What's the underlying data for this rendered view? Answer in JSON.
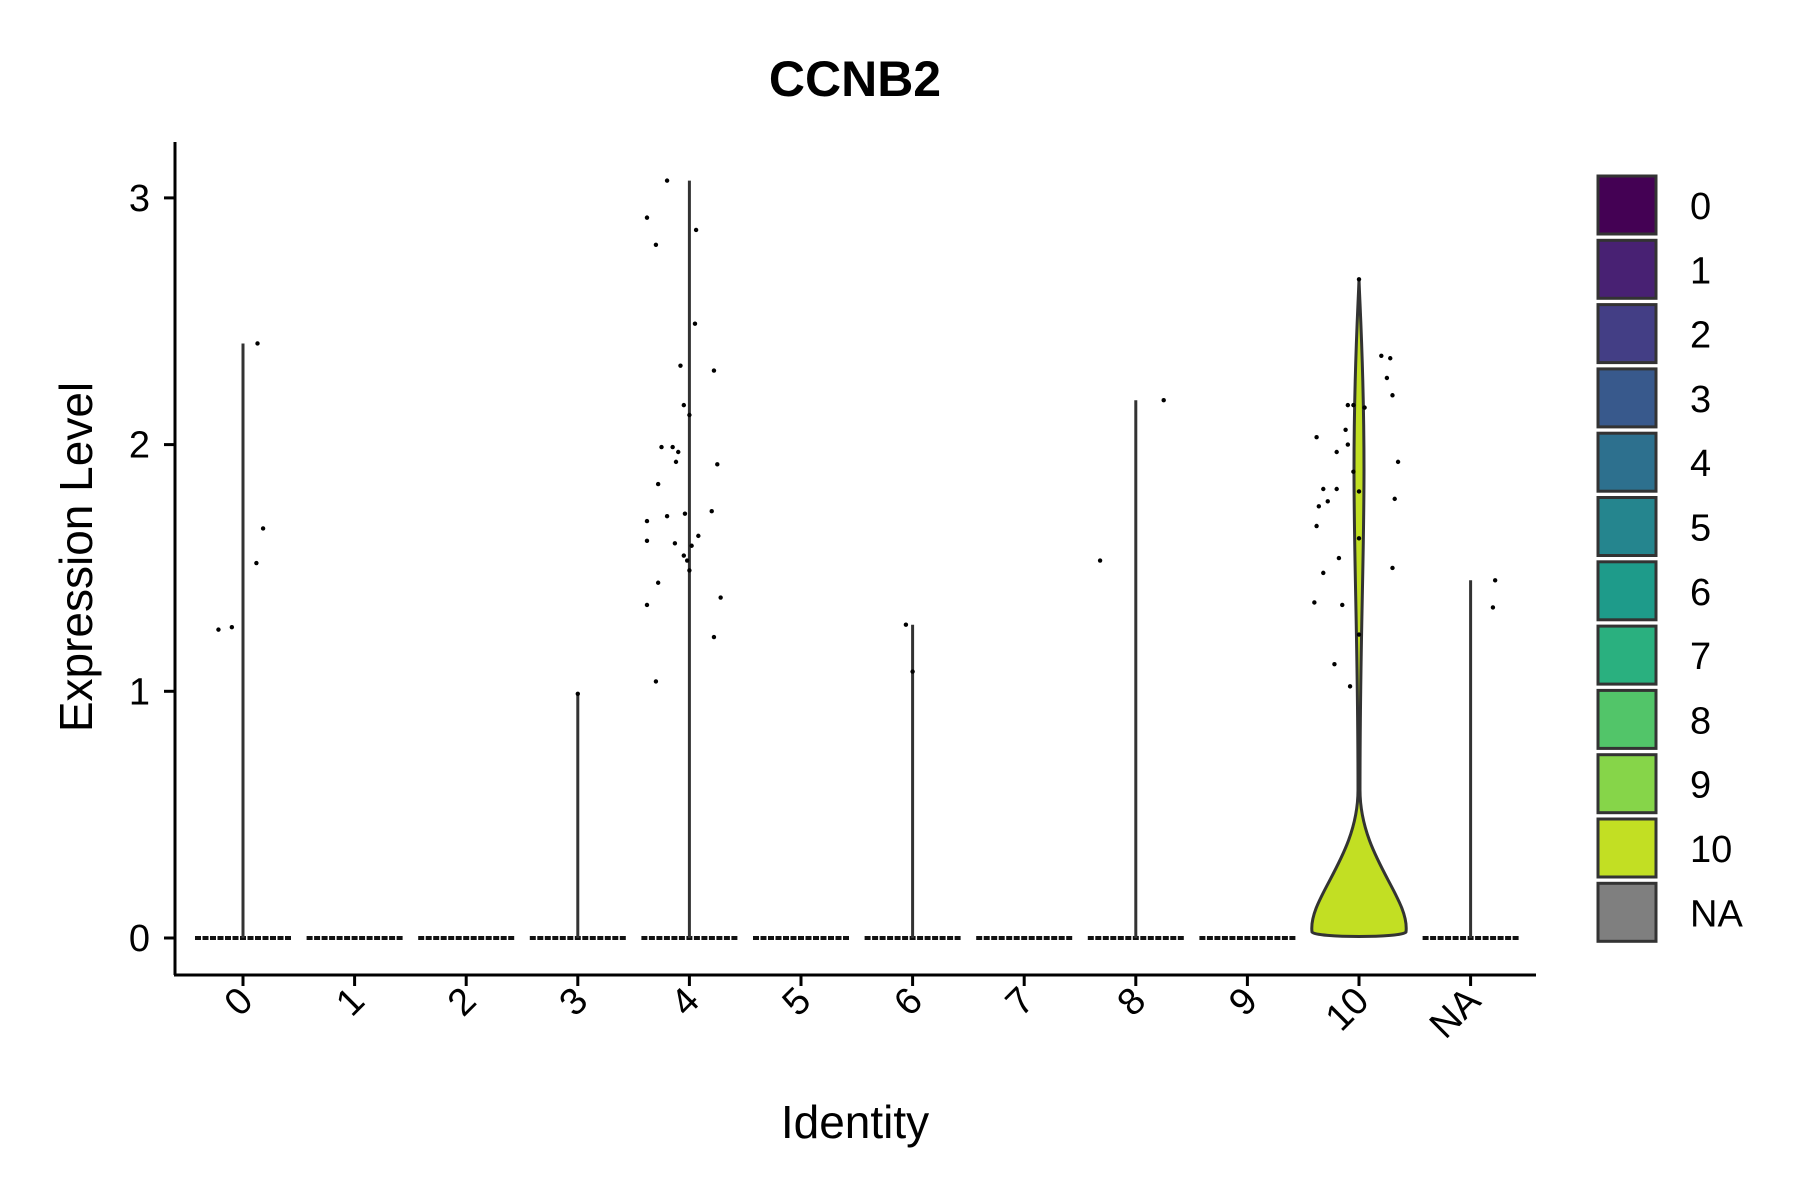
{
  "chart_data": {
    "type": "violin",
    "title": "CCNB2",
    "xlabel": "Identity",
    "ylabel": "Expression Level",
    "categories": [
      "0",
      "1",
      "2",
      "3",
      "4",
      "5",
      "6",
      "7",
      "8",
      "9",
      "10",
      "NA"
    ],
    "ylim": [
      -0.15,
      3.22
    ],
    "yticks": [
      0,
      1,
      2,
      3
    ],
    "legend_position": "right",
    "legend": [
      {
        "label": "0",
        "color": "#440154"
      },
      {
        "label": "1",
        "color": "#482173"
      },
      {
        "label": "2",
        "color": "#433e85"
      },
      {
        "label": "3",
        "color": "#38598c"
      },
      {
        "label": "4",
        "color": "#2d708e"
      },
      {
        "label": "5",
        "color": "#25858e"
      },
      {
        "label": "6",
        "color": "#1e9b8a"
      },
      {
        "label": "7",
        "color": "#2ab07f"
      },
      {
        "label": "8",
        "color": "#52c569"
      },
      {
        "label": "9",
        "color": "#86d549"
      },
      {
        "label": "10",
        "color": "#c2df23"
      },
      {
        "label": "NA",
        "color": "#7f7f7f"
      }
    ],
    "series": [
      {
        "category": "0",
        "max": 2.41,
        "points": [
          [
            -0.22,
            1.25
          ],
          [
            -0.1,
            1.26
          ],
          [
            0.13,
            2.41
          ],
          [
            0.12,
            1.52
          ],
          [
            0.18,
            1.66
          ]
        ]
      },
      {
        "category": "1",
        "max": 0,
        "points": []
      },
      {
        "category": "2",
        "max": 0,
        "points": []
      },
      {
        "category": "3",
        "max": 0.99,
        "points": [
          [
            0.0,
            0.99
          ]
        ]
      },
      {
        "category": "4",
        "max": 3.07,
        "points": [
          [
            -0.38,
            2.92
          ],
          [
            -0.2,
            3.07
          ],
          [
            -0.3,
            2.81
          ],
          [
            0.06,
            2.87
          ],
          [
            0.05,
            2.49
          ],
          [
            -0.08,
            2.32
          ],
          [
            0.22,
            2.3
          ],
          [
            -0.05,
            2.16
          ],
          [
            0.0,
            2.12
          ],
          [
            -0.25,
            1.99
          ],
          [
            -0.15,
            1.99
          ],
          [
            -0.1,
            1.97
          ],
          [
            -0.12,
            1.93
          ],
          [
            0.25,
            1.92
          ],
          [
            -0.28,
            1.84
          ],
          [
            -0.38,
            1.69
          ],
          [
            -0.2,
            1.71
          ],
          [
            -0.04,
            1.72
          ],
          [
            0.2,
            1.73
          ],
          [
            0.08,
            1.63
          ],
          [
            -0.38,
            1.61
          ],
          [
            -0.13,
            1.6
          ],
          [
            0.02,
            1.59
          ],
          [
            -0.05,
            1.55
          ],
          [
            -0.02,
            1.53
          ],
          [
            0.0,
            1.49
          ],
          [
            -0.28,
            1.44
          ],
          [
            -0.38,
            1.35
          ],
          [
            0.28,
            1.38
          ],
          [
            0.22,
            1.22
          ],
          [
            -0.3,
            1.04
          ]
        ]
      },
      {
        "category": "5",
        "max": 0,
        "points": []
      },
      {
        "category": "6",
        "max": 1.27,
        "points": [
          [
            -0.06,
            1.27
          ],
          [
            0.0,
            1.08
          ]
        ]
      },
      {
        "category": "7",
        "max": 0,
        "points": []
      },
      {
        "category": "8",
        "max": 2.18,
        "points": [
          [
            -0.32,
            1.53
          ],
          [
            0.25,
            2.18
          ]
        ]
      },
      {
        "category": "9",
        "max": 0,
        "points": []
      },
      {
        "category": "10",
        "max": 2.67,
        "points": [
          [
            0.0,
            2.67
          ],
          [
            0.2,
            2.36
          ],
          [
            0.28,
            2.35
          ],
          [
            0.25,
            2.27
          ],
          [
            0.3,
            2.2
          ],
          [
            -0.1,
            2.16
          ],
          [
            -0.05,
            2.16
          ],
          [
            0.05,
            2.15
          ],
          [
            -0.12,
            2.06
          ],
          [
            -0.38,
            2.03
          ],
          [
            -0.1,
            2.0
          ],
          [
            -0.2,
            1.97
          ],
          [
            0.35,
            1.93
          ],
          [
            -0.05,
            1.89
          ],
          [
            -0.32,
            1.82
          ],
          [
            -0.2,
            1.82
          ],
          [
            0.0,
            1.81
          ],
          [
            -0.36,
            1.75
          ],
          [
            -0.28,
            1.77
          ],
          [
            0.32,
            1.78
          ],
          [
            -0.38,
            1.67
          ],
          [
            0.0,
            1.62
          ],
          [
            -0.18,
            1.54
          ],
          [
            -0.32,
            1.48
          ],
          [
            0.3,
            1.5
          ],
          [
            -0.4,
            1.36
          ],
          [
            -0.15,
            1.35
          ],
          [
            0.0,
            1.23
          ],
          [
            -0.22,
            1.11
          ],
          [
            -0.08,
            1.02
          ]
        ]
      },
      {
        "category": "NA",
        "max": 1.45,
        "points": [
          [
            0.22,
            1.45
          ],
          [
            0.2,
            1.34
          ]
        ]
      }
    ]
  }
}
